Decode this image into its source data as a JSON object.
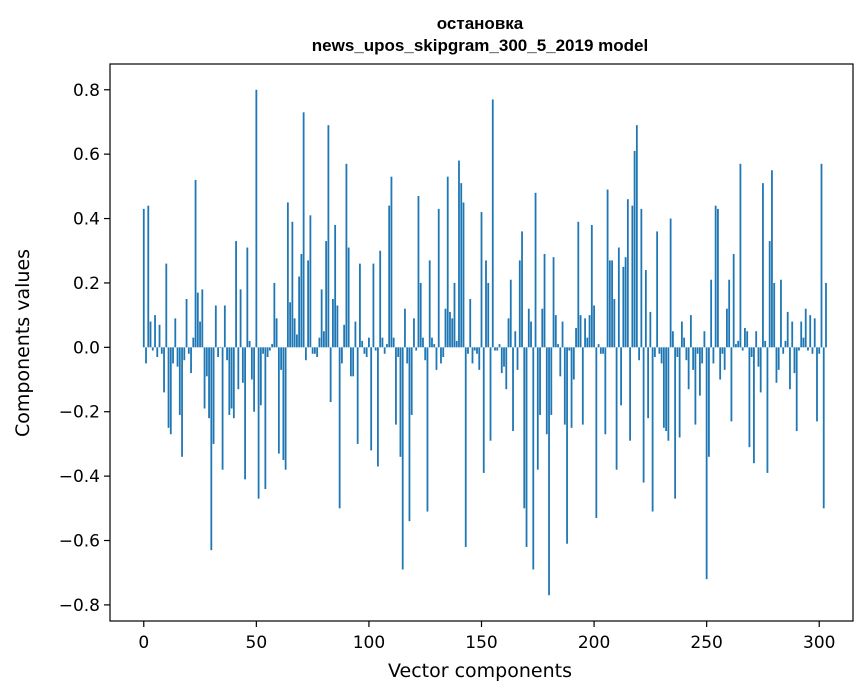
{
  "chart_data": {
    "type": "bar",
    "title": "остановка",
    "subtitle": "news_upos_skipgram_300_5_2019 model",
    "xlabel": "Vector components",
    "ylabel": "Components values",
    "xlim": [
      -15,
      315
    ],
    "ylim": [
      -0.85,
      0.88
    ],
    "xticks": [
      0,
      50,
      100,
      150,
      200,
      250,
      300
    ],
    "xtick_labels": [
      "0",
      "50",
      "100",
      "150",
      "200",
      "250",
      "300"
    ],
    "yticks": [
      0.8,
      0.6,
      0.4,
      0.2,
      0.0,
      -0.2,
      -0.4,
      -0.6,
      -0.8
    ],
    "ytick_labels": [
      "0.8",
      "0.6",
      "0.4",
      "0.2",
      "0.0",
      "−0.2",
      "−0.4",
      "−0.6",
      "−0.8"
    ],
    "grid": false,
    "bar_color": "#1f77b4",
    "values": [
      0.43,
      -0.05,
      0.44,
      0.08,
      -0.01,
      0.1,
      -0.03,
      0.07,
      -0.02,
      -0.14,
      0.26,
      -0.25,
      -0.27,
      -0.05,
      0.09,
      -0.06,
      -0.21,
      -0.34,
      -0.04,
      0.15,
      -0.02,
      -0.08,
      0.03,
      0.52,
      0.17,
      0.08,
      0.18,
      -0.19,
      -0.09,
      -0.22,
      -0.63,
      -0.3,
      0.13,
      -0.03,
      0.0,
      -0.38,
      0.13,
      -0.04,
      -0.21,
      -0.19,
      -0.22,
      0.33,
      -0.13,
      0.18,
      -0.11,
      -0.41,
      0.31,
      0.02,
      -0.1,
      -0.2,
      0.8,
      -0.47,
      -0.18,
      -0.02,
      -0.44,
      -0.03,
      -0.01,
      0.01,
      0.2,
      0.09,
      -0.33,
      -0.07,
      -0.35,
      -0.38,
      0.45,
      0.14,
      0.39,
      0.09,
      0.04,
      0.22,
      0.29,
      0.73,
      -0.04,
      0.27,
      0.41,
      -0.02,
      -0.02,
      -0.03,
      0.03,
      0.18,
      0.05,
      0.33,
      0.69,
      -0.17,
      0.15,
      0.38,
      0.13,
      -0.5,
      -0.05,
      0.07,
      0.57,
      0.31,
      -0.09,
      -0.09,
      0.08,
      -0.3,
      0.26,
      0.02,
      -0.02,
      -0.03,
      0.03,
      -0.32,
      0.26,
      -0.01,
      -0.37,
      0.3,
      0.03,
      -0.02,
      0.01,
      0.44,
      0.53,
      0.03,
      -0.24,
      -0.03,
      -0.34,
      -0.69,
      0.12,
      -0.05,
      -0.54,
      -0.21,
      0.09,
      -0.01,
      0.47,
      0.2,
      0.03,
      -0.04,
      -0.51,
      0.27,
      0.03,
      0.01,
      -0.07,
      0.43,
      -0.05,
      -0.03,
      0.12,
      0.53,
      0.11,
      0.09,
      0.2,
      0.02,
      0.58,
      0.51,
      0.45,
      -0.62,
      -0.02,
      0.15,
      -0.05,
      -0.01,
      -0.02,
      -0.07,
      0.42,
      -0.39,
      0.27,
      0.2,
      -0.29,
      0.77,
      -0.01,
      -0.01,
      0.01,
      -0.08,
      -0.06,
      -0.13,
      0.09,
      0.21,
      -0.26,
      0.05,
      -0.07,
      0.27,
      0.36,
      -0.5,
      -0.62,
      0.12,
      0.08,
      -0.69,
      0.48,
      -0.38,
      -0.21,
      0.12,
      0.29,
      -0.27,
      -0.77,
      -0.21,
      0.28,
      0.1,
      0.01,
      -0.09,
      0.08,
      -0.24,
      -0.61,
      -0.01,
      -0.25,
      -0.1,
      0.06,
      0.39,
      0.1,
      -0.24,
      0.09,
      0.03,
      0.1,
      0.38,
      0.13,
      -0.53,
      0.01,
      -0.02,
      -0.02,
      -0.27,
      0.49,
      0.27,
      0.27,
      0.15,
      -0.38,
      0.31,
      -0.18,
      0.25,
      0.28,
      0.46,
      -0.29,
      0.44,
      0.61,
      0.69,
      -0.04,
      0.43,
      -0.42,
      0.24,
      -0.22,
      0.11,
      -0.51,
      -0.03,
      0.36,
      -0.02,
      -0.05,
      -0.25,
      -0.26,
      -0.29,
      0.4,
      0.05,
      -0.47,
      -0.03,
      -0.28,
      0.08,
      0.03,
      -0.04,
      -0.13,
      0.1,
      -0.07,
      -0.24,
      -0.02,
      -0.15,
      -0.05,
      0.05,
      -0.72,
      -0.34,
      0.21,
      -0.05,
      0.44,
      0.43,
      -0.1,
      -0.02,
      -0.07,
      0.12,
      0.21,
      -0.23,
      0.29,
      0.01,
      0.02,
      0.57,
      -0.01,
      0.06,
      0.05,
      -0.31,
      -0.03,
      -0.36,
      0.05,
      -0.06,
      -0.14,
      0.51,
      0.02,
      -0.39,
      0.33,
      0.55,
      0.2,
      -0.11,
      -0.07,
      0.21,
      -0.02,
      0.02,
      0.11,
      -0.13,
      0.08,
      -0.08,
      -0.26,
      -0.01,
      0.08,
      0.03,
      0.12,
      -0.01,
      0.1,
      -0.02,
      0.09,
      -0.23,
      -0.02,
      0.57,
      -0.5,
      0.2
    ]
  }
}
